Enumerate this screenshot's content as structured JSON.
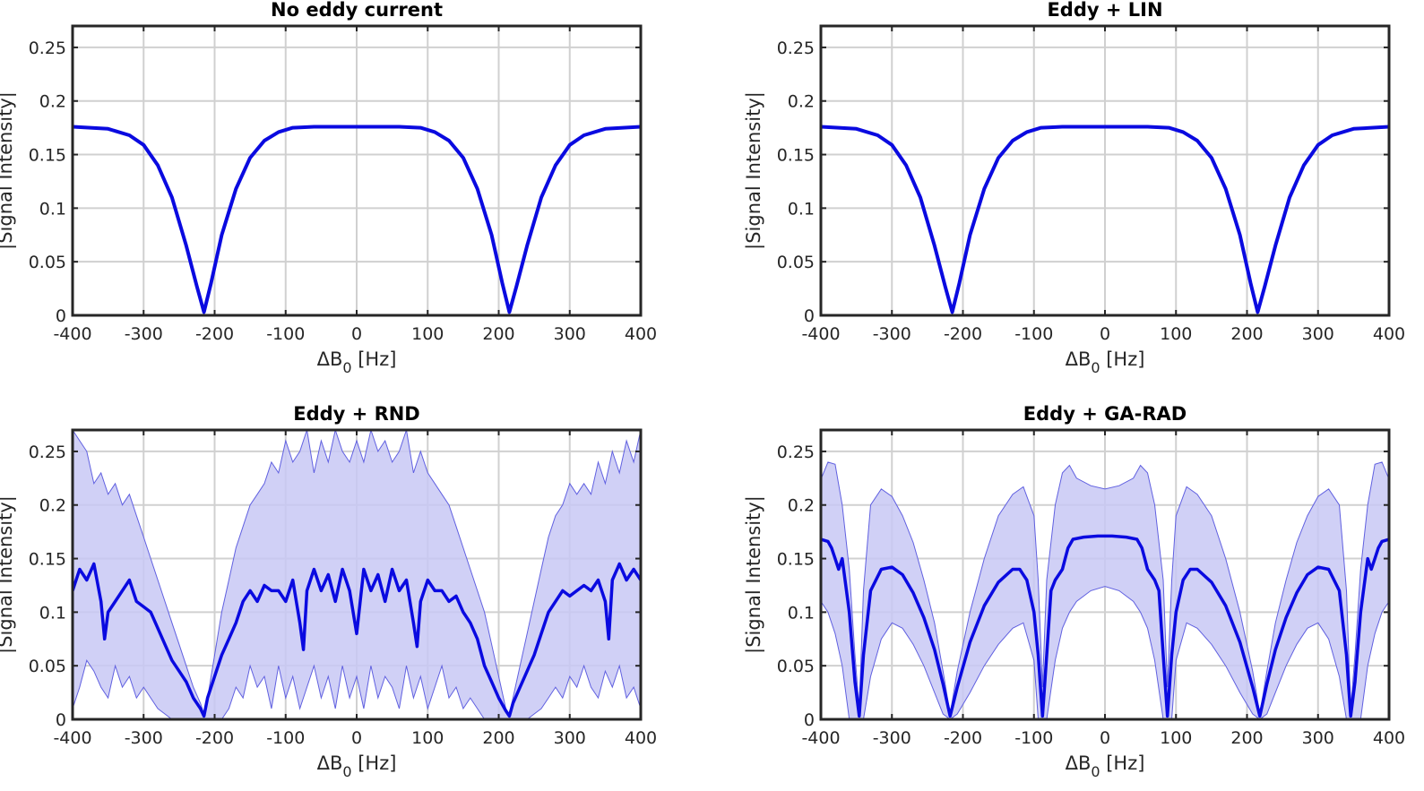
{
  "chart_data": [
    {
      "type": "line",
      "title": "No eddy current",
      "xlabel": "ΔB",
      "xlabel_sub": "0",
      "xlabel_unit": " [Hz]",
      "ylabel": "|Signal Intensity|",
      "xlim": [
        -400,
        400
      ],
      "ylim": [
        0,
        0.27
      ],
      "xticks": [
        "-400",
        "-300",
        "-200",
        "-100",
        "0",
        "100",
        "200",
        "300",
        "400"
      ],
      "yticks": [
        "0",
        "0.05",
        "0.1",
        "0.15",
        "0.2",
        "0.25"
      ],
      "series": [
        {
          "name": "mean",
          "x": [
            -400,
            -350,
            -320,
            -300,
            -280,
            -260,
            -240,
            -225,
            -215,
            -205,
            -190,
            -170,
            -150,
            -130,
            -110,
            -90,
            -60,
            -30,
            0,
            30,
            60,
            90,
            110,
            130,
            150,
            170,
            190,
            205,
            215,
            225,
            240,
            260,
            280,
            300,
            320,
            350,
            400
          ],
          "values": [
            0.176,
            0.174,
            0.168,
            0.159,
            0.14,
            0.11,
            0.065,
            0.027,
            0.003,
            0.03,
            0.075,
            0.118,
            0.147,
            0.163,
            0.171,
            0.175,
            0.176,
            0.176,
            0.176,
            0.176,
            0.176,
            0.175,
            0.171,
            0.163,
            0.147,
            0.118,
            0.075,
            0.03,
            0.003,
            0.027,
            0.065,
            0.11,
            0.14,
            0.159,
            0.168,
            0.174,
            0.176
          ]
        }
      ],
      "band": null
    },
    {
      "type": "line",
      "title": "Eddy + LIN",
      "xlabel": "ΔB",
      "xlabel_sub": "0",
      "xlabel_unit": " [Hz]",
      "ylabel": "|Signal Intensity|",
      "xlim": [
        -400,
        400
      ],
      "ylim": [
        0,
        0.27
      ],
      "xticks": [
        "-400",
        "-300",
        "-200",
        "-100",
        "0",
        "100",
        "200",
        "300",
        "400"
      ],
      "yticks": [
        "0",
        "0.05",
        "0.1",
        "0.15",
        "0.2",
        "0.25"
      ],
      "series": [
        {
          "name": "mean",
          "x": [
            -400,
            -350,
            -320,
            -300,
            -280,
            -260,
            -240,
            -225,
            -215,
            -205,
            -190,
            -170,
            -150,
            -130,
            -110,
            -90,
            -60,
            -30,
            0,
            30,
            60,
            90,
            110,
            130,
            150,
            170,
            190,
            205,
            215,
            225,
            240,
            260,
            280,
            300,
            320,
            350,
            400
          ],
          "values": [
            0.176,
            0.174,
            0.168,
            0.159,
            0.14,
            0.11,
            0.065,
            0.027,
            0.003,
            0.03,
            0.075,
            0.118,
            0.147,
            0.163,
            0.171,
            0.175,
            0.176,
            0.176,
            0.176,
            0.176,
            0.176,
            0.175,
            0.171,
            0.163,
            0.147,
            0.118,
            0.075,
            0.03,
            0.003,
            0.027,
            0.065,
            0.11,
            0.14,
            0.159,
            0.168,
            0.174,
            0.176
          ]
        }
      ],
      "band": null
    },
    {
      "type": "line",
      "title": "Eddy + RND",
      "xlabel": "ΔB",
      "xlabel_sub": "0",
      "xlabel_unit": " [Hz]",
      "ylabel": "|Signal Intensity|",
      "xlim": [
        -400,
        400
      ],
      "ylim": [
        0,
        0.27
      ],
      "xticks": [
        "-400",
        "-300",
        "-200",
        "-100",
        "0",
        "100",
        "200",
        "300",
        "400"
      ],
      "yticks": [
        "0",
        "0.05",
        "0.1",
        "0.15",
        "0.2",
        "0.25"
      ],
      "series": [
        {
          "name": "mean",
          "x": [
            -400,
            -390,
            -380,
            -370,
            -360,
            -355,
            -350,
            -340,
            -330,
            -320,
            -310,
            -300,
            -290,
            -280,
            -270,
            -260,
            -250,
            -240,
            -230,
            -220,
            -215,
            -210,
            -200,
            -190,
            -180,
            -170,
            -160,
            -150,
            -140,
            -130,
            -120,
            -110,
            -100,
            -90,
            -80,
            -75,
            -70,
            -60,
            -50,
            -40,
            -30,
            -20,
            -10,
            0,
            10,
            20,
            30,
            40,
            50,
            60,
            70,
            80,
            85,
            90,
            100,
            110,
            120,
            130,
            140,
            150,
            160,
            170,
            180,
            190,
            200,
            210,
            215,
            220,
            230,
            240,
            250,
            260,
            270,
            280,
            290,
            300,
            310,
            320,
            330,
            340,
            350,
            355,
            360,
            370,
            380,
            390,
            400
          ],
          "values": [
            0.12,
            0.14,
            0.13,
            0.145,
            0.11,
            0.075,
            0.1,
            0.11,
            0.12,
            0.13,
            0.11,
            0.105,
            0.1,
            0.085,
            0.07,
            0.055,
            0.045,
            0.035,
            0.02,
            0.01,
            0.003,
            0.02,
            0.04,
            0.06,
            0.075,
            0.09,
            0.11,
            0.12,
            0.11,
            0.125,
            0.12,
            0.12,
            0.11,
            0.13,
            0.09,
            0.065,
            0.12,
            0.14,
            0.12,
            0.135,
            0.11,
            0.14,
            0.12,
            0.08,
            0.14,
            0.12,
            0.135,
            0.11,
            0.14,
            0.12,
            0.13,
            0.09,
            0.068,
            0.11,
            0.13,
            0.12,
            0.12,
            0.11,
            0.115,
            0.1,
            0.09,
            0.075,
            0.05,
            0.035,
            0.02,
            0.008,
            0.003,
            0.015,
            0.03,
            0.045,
            0.06,
            0.08,
            0.1,
            0.11,
            0.12,
            0.115,
            0.12,
            0.125,
            0.12,
            0.13,
            0.11,
            0.075,
            0.13,
            0.145,
            0.13,
            0.14,
            0.13
          ]
        }
      ],
      "band": {
        "x": [
          -400,
          -390,
          -380,
          -370,
          -360,
          -350,
          -340,
          -330,
          -320,
          -310,
          -300,
          -290,
          -280,
          -270,
          -260,
          -250,
          -240,
          -230,
          -220,
          -215,
          -210,
          -200,
          -190,
          -180,
          -170,
          -160,
          -150,
          -140,
          -130,
          -120,
          -110,
          -100,
          -90,
          -80,
          -70,
          -60,
          -50,
          -40,
          -30,
          -20,
          -10,
          0,
          10,
          20,
          30,
          40,
          50,
          60,
          70,
          80,
          90,
          100,
          110,
          120,
          130,
          140,
          150,
          160,
          170,
          180,
          190,
          200,
          210,
          215,
          220,
          230,
          240,
          250,
          260,
          270,
          280,
          290,
          300,
          310,
          320,
          330,
          340,
          350,
          360,
          370,
          380,
          390,
          400
        ],
        "upper": [
          0.27,
          0.26,
          0.25,
          0.22,
          0.23,
          0.21,
          0.22,
          0.2,
          0.21,
          0.19,
          0.17,
          0.15,
          0.13,
          0.11,
          0.09,
          0.07,
          0.05,
          0.03,
          0.015,
          0.005,
          0.02,
          0.06,
          0.1,
          0.13,
          0.16,
          0.18,
          0.2,
          0.21,
          0.22,
          0.24,
          0.23,
          0.26,
          0.24,
          0.25,
          0.27,
          0.23,
          0.26,
          0.24,
          0.27,
          0.25,
          0.24,
          0.26,
          0.24,
          0.27,
          0.25,
          0.26,
          0.24,
          0.25,
          0.27,
          0.23,
          0.25,
          0.23,
          0.22,
          0.21,
          0.2,
          0.18,
          0.16,
          0.14,
          0.12,
          0.1,
          0.07,
          0.04,
          0.01,
          0.005,
          0.02,
          0.05,
          0.08,
          0.11,
          0.14,
          0.17,
          0.19,
          0.2,
          0.22,
          0.21,
          0.22,
          0.21,
          0.24,
          0.22,
          0.25,
          0.23,
          0.26,
          0.24,
          0.27
        ],
        "lower": [
          0.01,
          0.03,
          0.055,
          0.045,
          0.03,
          0.02,
          0.05,
          0.03,
          0.04,
          0.02,
          0.03,
          0.02,
          0.01,
          0.005,
          0.0,
          0.0,
          0.0,
          0.0,
          0.0,
          0.0,
          0.0,
          0.0,
          0.0,
          0.01,
          0.03,
          0.02,
          0.05,
          0.03,
          0.04,
          0.01,
          0.05,
          0.02,
          0.04,
          0.01,
          0.03,
          0.05,
          0.02,
          0.04,
          0.01,
          0.05,
          0.02,
          0.04,
          0.01,
          0.05,
          0.02,
          0.04,
          0.03,
          0.01,
          0.05,
          0.02,
          0.04,
          0.01,
          0.03,
          0.05,
          0.02,
          0.03,
          0.01,
          0.02,
          0.01,
          0.0,
          0.0,
          0.0,
          0.0,
          0.0,
          0.0,
          0.0,
          0.0,
          0.005,
          0.01,
          0.02,
          0.03,
          0.02,
          0.04,
          0.03,
          0.05,
          0.03,
          0.02,
          0.045,
          0.03,
          0.05,
          0.02,
          0.03,
          0.01
        ]
      }
    },
    {
      "type": "line",
      "title": "Eddy + GA-RAD",
      "xlabel": "ΔB",
      "xlabel_sub": "0",
      "xlabel_unit": " [Hz]",
      "ylabel": "|Signal Intensity|",
      "xlim": [
        -400,
        400
      ],
      "ylim": [
        0,
        0.27
      ],
      "xticks": [
        "-400",
        "-300",
        "-200",
        "-100",
        "0",
        "100",
        "200",
        "300",
        "400"
      ],
      "yticks": [
        "0",
        "0.05",
        "0.1",
        "0.15",
        "0.2",
        "0.25"
      ],
      "series": [
        {
          "name": "mean",
          "x": [
            -400,
            -390,
            -385,
            -380,
            -375,
            -370,
            -360,
            -352,
            -346,
            -340,
            -330,
            -315,
            -300,
            -285,
            -270,
            -255,
            -240,
            -228,
            -218,
            -208,
            -190,
            -170,
            -150,
            -130,
            -120,
            -110,
            -100,
            -94,
            -88,
            -82,
            -76,
            -70,
            -60,
            -56,
            -52,
            -45,
            -30,
            -10,
            0,
            10,
            30,
            45,
            52,
            56,
            60,
            70,
            76,
            82,
            88,
            94,
            100,
            110,
            120,
            130,
            150,
            170,
            190,
            208,
            218,
            228,
            240,
            255,
            270,
            285,
            300,
            315,
            330,
            340,
            346,
            352,
            360,
            370,
            375,
            380,
            385,
            390,
            400
          ],
          "values": [
            0.168,
            0.166,
            0.16,
            0.15,
            0.14,
            0.15,
            0.1,
            0.035,
            0.003,
            0.06,
            0.12,
            0.14,
            0.142,
            0.135,
            0.118,
            0.095,
            0.065,
            0.033,
            0.003,
            0.03,
            0.072,
            0.106,
            0.128,
            0.14,
            0.14,
            0.13,
            0.1,
            0.06,
            0.003,
            0.06,
            0.12,
            0.13,
            0.14,
            0.15,
            0.16,
            0.168,
            0.17,
            0.171,
            0.171,
            0.171,
            0.17,
            0.168,
            0.16,
            0.15,
            0.14,
            0.13,
            0.12,
            0.06,
            0.003,
            0.06,
            0.1,
            0.13,
            0.14,
            0.14,
            0.128,
            0.106,
            0.072,
            0.03,
            0.003,
            0.033,
            0.065,
            0.095,
            0.118,
            0.135,
            0.142,
            0.14,
            0.12,
            0.06,
            0.003,
            0.035,
            0.1,
            0.15,
            0.14,
            0.15,
            0.16,
            0.166,
            0.168
          ]
        }
      ],
      "band": {
        "x": [
          -400,
          -390,
          -380,
          -370,
          -360,
          -352,
          -346,
          -340,
          -330,
          -315,
          -300,
          -285,
          -270,
          -255,
          -240,
          -228,
          -218,
          -208,
          -190,
          -170,
          -150,
          -130,
          -115,
          -100,
          -94,
          -88,
          -82,
          -70,
          -60,
          -50,
          -40,
          -20,
          0,
          20,
          40,
          50,
          60,
          70,
          82,
          88,
          94,
          100,
          115,
          130,
          150,
          170,
          190,
          208,
          218,
          228,
          240,
          255,
          270,
          285,
          300,
          315,
          330,
          340,
          346,
          352,
          360,
          370,
          380,
          390,
          400
        ],
        "upper": [
          0.224,
          0.24,
          0.238,
          0.2,
          0.14,
          0.06,
          0.01,
          0.12,
          0.2,
          0.215,
          0.208,
          0.19,
          0.165,
          0.13,
          0.09,
          0.045,
          0.005,
          0.045,
          0.1,
          0.15,
          0.19,
          0.21,
          0.217,
          0.19,
          0.13,
          0.03,
          0.13,
          0.2,
          0.23,
          0.237,
          0.225,
          0.218,
          0.215,
          0.218,
          0.225,
          0.237,
          0.23,
          0.2,
          0.13,
          0.03,
          0.13,
          0.19,
          0.217,
          0.21,
          0.19,
          0.15,
          0.1,
          0.045,
          0.005,
          0.045,
          0.09,
          0.13,
          0.165,
          0.19,
          0.208,
          0.215,
          0.2,
          0.12,
          0.01,
          0.06,
          0.14,
          0.2,
          0.238,
          0.24,
          0.224
        ],
        "lower": [
          0.11,
          0.1,
          0.08,
          0.05,
          0.0,
          0.0,
          0.0,
          0.0,
          0.04,
          0.075,
          0.09,
          0.085,
          0.07,
          0.05,
          0.025,
          0.005,
          0.0,
          0.005,
          0.025,
          0.05,
          0.07,
          0.085,
          0.09,
          0.055,
          0.0,
          0.0,
          0.0,
          0.055,
          0.085,
          0.1,
          0.11,
          0.12,
          0.124,
          0.12,
          0.11,
          0.1,
          0.085,
          0.055,
          0.0,
          0.0,
          0.0,
          0.055,
          0.09,
          0.085,
          0.07,
          0.05,
          0.025,
          0.005,
          0.0,
          0.005,
          0.025,
          0.05,
          0.07,
          0.085,
          0.09,
          0.075,
          0.04,
          0.0,
          0.0,
          0.0,
          0.0,
          0.05,
          0.08,
          0.1,
          0.11
        ]
      }
    }
  ]
}
